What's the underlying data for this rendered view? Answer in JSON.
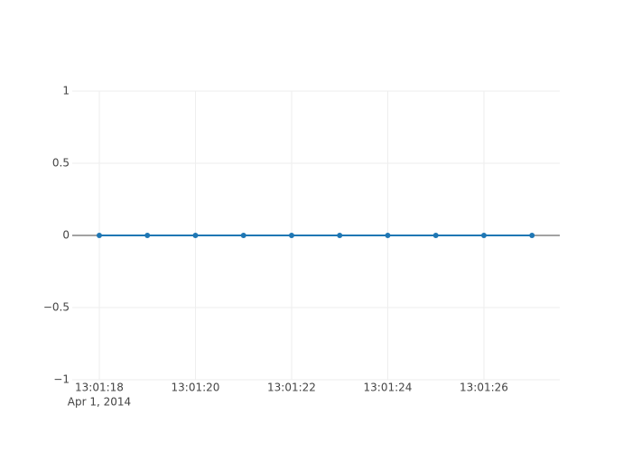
{
  "chart_data": {
    "type": "line",
    "x": [
      "2014-04-01T13:01:18",
      "2014-04-01T13:01:19",
      "2014-04-01T13:01:20",
      "2014-04-01T13:01:21",
      "2014-04-01T13:01:22",
      "2014-04-01T13:01:23",
      "2014-04-01T13:01:24",
      "2014-04-01T13:01:25",
      "2014-04-01T13:01:26",
      "2014-04-01T13:01:27"
    ],
    "values": [
      0,
      0,
      0,
      0,
      0,
      0,
      0,
      0,
      0,
      0
    ],
    "color": "#1f77b4",
    "xlim": [
      "2014-04-01T13:01:17.437",
      "2014-04-01T13:01:27.578"
    ],
    "xticks": [
      {
        "value": "2014-04-01T13:01:18",
        "label": "13:01:18"
      },
      {
        "value": "2014-04-01T13:01:20",
        "label": "13:01:20"
      },
      {
        "value": "2014-04-01T13:01:22",
        "label": "13:01:22"
      },
      {
        "value": "2014-04-01T13:01:24",
        "label": "13:01:24"
      },
      {
        "value": "2014-04-01T13:01:26",
        "label": "13:01:26"
      }
    ],
    "x_date_label": "Apr 1, 2014",
    "ylim": [
      -1,
      1
    ],
    "yticks": [
      {
        "value": -1,
        "label": "−1"
      },
      {
        "value": -0.5,
        "label": "−0.5"
      },
      0,
      0.5,
      1
    ],
    "grid": true
  }
}
